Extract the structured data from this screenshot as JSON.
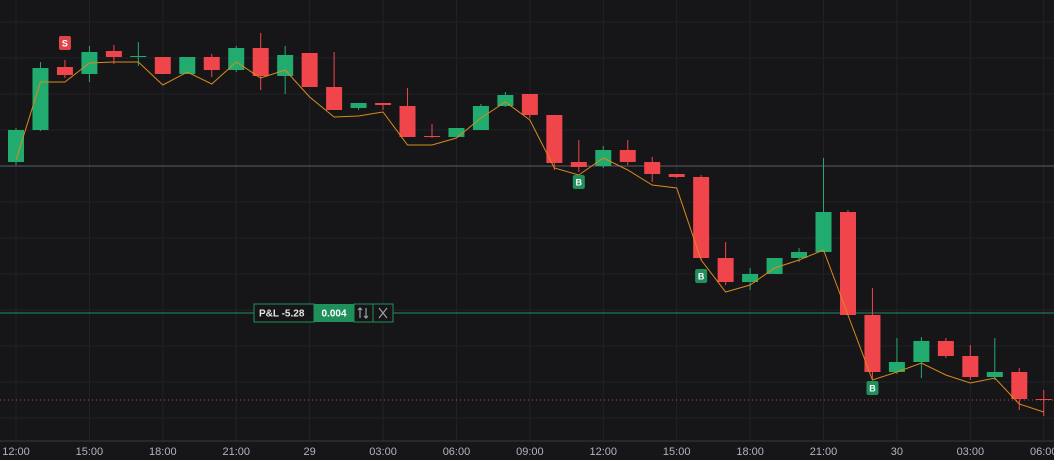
{
  "chart_data": {
    "type": "candlestick",
    "categories": [
      "12:00",
      null,
      null,
      "15:00",
      null,
      null,
      "18:00",
      null,
      null,
      "21:00",
      null,
      null,
      "29",
      null,
      null,
      "03:00",
      null,
      null,
      "06:00",
      null,
      null,
      "09:00",
      null,
      null,
      "12:00",
      null,
      null,
      "15:00",
      null,
      null,
      "18:00",
      null,
      null,
      "21:00",
      null,
      null,
      "30",
      null,
      null,
      "03:00",
      null,
      null,
      "06:00"
    ],
    "open": [
      278,
      310,
      373,
      366,
      389,
      383,
      383,
      366,
      383,
      370,
      392,
      364,
      387,
      353,
      332,
      337,
      334,
      304,
      303,
      310,
      334,
      346,
      325,
      278,
      274,
      290,
      278,
      266,
      263,
      182,
      158,
      166,
      182,
      188,
      228,
      125,
      68,
      78,
      99,
      84,
      63,
      68,
      41
    ],
    "high": [
      312,
      378,
      380,
      394,
      395,
      398,
      383,
      383,
      386,
      394,
      407,
      394,
      387,
      388,
      337,
      337,
      352,
      316,
      312,
      336,
      348,
      346,
      325,
      300,
      294,
      300,
      283,
      266,
      265,
      198,
      172,
      182,
      192,
      282,
      230,
      152,
      102,
      103,
      102,
      95,
      102,
      72,
      50
    ],
    "low": [
      275,
      309,
      362,
      358,
      376,
      374,
      366,
      366,
      363,
      368,
      350,
      346,
      353,
      330,
      330,
      330,
      303,
      302,
      303,
      310,
      333,
      322,
      270,
      268,
      272,
      275,
      258,
      262,
      180,
      155,
      150,
      166,
      178,
      188,
      125,
      60,
      66,
      62,
      82,
      60,
      60,
      30,
      24
    ],
    "close": [
      310,
      372,
      365,
      388,
      383,
      384,
      366,
      383,
      370,
      392,
      364,
      385,
      353,
      330,
      337,
      335,
      303,
      303,
      312,
      334,
      345,
      325,
      277,
      273,
      290,
      278,
      266,
      263,
      182,
      158,
      166,
      182,
      188,
      228,
      125,
      68,
      78,
      99,
      84,
      63,
      68,
      41,
      40
    ],
    "up_color": "#22ab6e",
    "down_color": "#f0454a",
    "indicator": {
      "color": "#d98a1c",
      "values": [
        280,
        358,
        358,
        377,
        378,
        378,
        355,
        368,
        356,
        378,
        362,
        370,
        343,
        323,
        324,
        328,
        295,
        295,
        302,
        322,
        338,
        320,
        272,
        265,
        282,
        270,
        255,
        252,
        180,
        148,
        155,
        172,
        180,
        190,
        125,
        60,
        68,
        77,
        65,
        57,
        62,
        36,
        28
      ]
    },
    "markers": [
      {
        "index": 2,
        "label": "S",
        "value": 397,
        "color": "#e0444a"
      },
      {
        "index": 23,
        "label": "B",
        "value": 258,
        "color": "#1f8f5c"
      },
      {
        "index": 28,
        "label": "B",
        "value": 164,
        "color": "#1f8f5c"
      },
      {
        "index": 35,
        "label": "B",
        "value": 52,
        "color": "#1f8f5c"
      }
    ],
    "levels": [
      {
        "value": 274,
        "color": "#5c5f66",
        "style": "solid"
      },
      {
        "value": 127,
        "color": "#1f8f5c",
        "style": "solid"
      },
      {
        "value": 40,
        "color": "#c0443c",
        "style": "dotted"
      }
    ],
    "position": {
      "pnl_label": "P&L -5.28",
      "size": "0.004"
    },
    "ylim": [
      0,
      440
    ],
    "grid": true
  }
}
